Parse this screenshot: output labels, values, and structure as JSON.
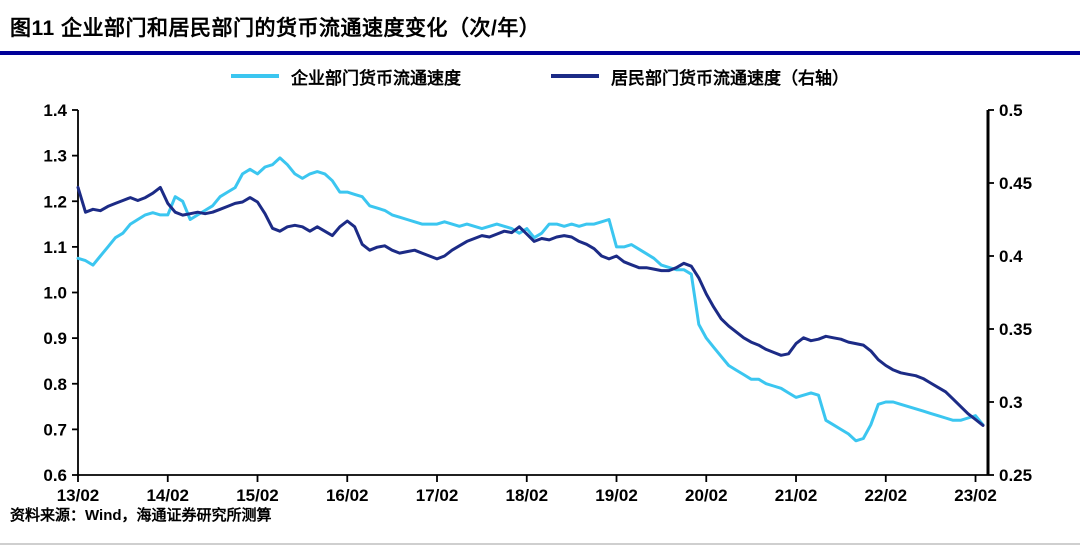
{
  "page": {
    "title": "图11 企业部门和居民部门的货币流通速度变化（次/年）",
    "source": "资料来源：Wind，海通证券研究所测算"
  },
  "colors": {
    "corporate_line": "#3bc6f0",
    "household_line": "#1c2b86",
    "title_rule": "#000099",
    "axis": "#000000"
  },
  "chart_data": {
    "type": "line",
    "title": "企业部门和居民部门的货币流通速度变化（次/年）",
    "x_unit": "month (YY/MM)",
    "legend_position": "top",
    "grid": false,
    "x_tick_labels": [
      "13/02",
      "14/02",
      "15/02",
      "16/02",
      "17/02",
      "18/02",
      "19/02",
      "20/02",
      "21/02",
      "22/02",
      "23/02"
    ],
    "x_tick_indices": [
      0,
      12,
      24,
      36,
      48,
      60,
      72,
      84,
      96,
      108,
      120
    ],
    "left_axis": {
      "min": 0.6,
      "max": 1.4,
      "ticks": [
        1.4,
        1.3,
        1.2,
        1.1,
        1.0,
        0.9,
        0.8,
        0.7,
        0.6
      ],
      "labels": [
        "1.4",
        "1.3",
        "1.2",
        "1.1",
        "1.0",
        "0.9",
        "0.8",
        "0.7",
        "0.6"
      ]
    },
    "right_axis": {
      "min": 0.25,
      "max": 0.5,
      "ticks": [
        0.5,
        0.45,
        0.4,
        0.35,
        0.3,
        0.25
      ],
      "labels": [
        "0.5",
        "0.45",
        "0.4",
        "0.35",
        "0.3",
        "0.25"
      ]
    },
    "series": [
      {
        "name": "企业部门货币流通速度",
        "axis": "left",
        "color": "#3bc6f0",
        "start": "2013-02",
        "values": [
          1.075,
          1.07,
          1.06,
          1.08,
          1.1,
          1.12,
          1.13,
          1.15,
          1.16,
          1.17,
          1.175,
          1.17,
          1.17,
          1.21,
          1.2,
          1.16,
          1.17,
          1.18,
          1.19,
          1.21,
          1.22,
          1.23,
          1.26,
          1.27,
          1.26,
          1.275,
          1.28,
          1.295,
          1.28,
          1.26,
          1.25,
          1.26,
          1.265,
          1.26,
          1.245,
          1.22,
          1.22,
          1.215,
          1.21,
          1.19,
          1.185,
          1.18,
          1.17,
          1.165,
          1.16,
          1.155,
          1.15,
          1.15,
          1.15,
          1.155,
          1.15,
          1.145,
          1.15,
          1.145,
          1.14,
          1.145,
          1.15,
          1.145,
          1.14,
          1.13,
          1.14,
          1.12,
          1.13,
          1.15,
          1.15,
          1.145,
          1.15,
          1.145,
          1.15,
          1.15,
          1.155,
          1.16,
          1.1,
          1.1,
          1.105,
          1.095,
          1.085,
          1.075,
          1.06,
          1.055,
          1.05,
          1.05,
          1.04,
          0.93,
          0.9,
          0.88,
          0.86,
          0.84,
          0.83,
          0.82,
          0.81,
          0.81,
          0.8,
          0.795,
          0.79,
          0.78,
          0.77,
          0.775,
          0.78,
          0.775,
          0.72,
          0.71,
          0.7,
          0.69,
          0.675,
          0.68,
          0.71,
          0.755,
          0.76,
          0.76,
          0.755,
          0.75,
          0.745,
          0.74,
          0.735,
          0.73,
          0.725,
          0.72,
          0.72,
          0.725,
          0.73,
          0.71
        ]
      },
      {
        "name": "居民部门货币流通速度（右轴）",
        "axis": "right",
        "color": "#1c2b86",
        "start": "2013-02",
        "values": [
          0.447,
          0.43,
          0.432,
          0.431,
          0.434,
          0.436,
          0.438,
          0.44,
          0.438,
          0.44,
          0.443,
          0.447,
          0.436,
          0.43,
          0.428,
          0.429,
          0.43,
          0.429,
          0.43,
          0.432,
          0.434,
          0.436,
          0.437,
          0.44,
          0.437,
          0.429,
          0.419,
          0.417,
          0.42,
          0.421,
          0.42,
          0.417,
          0.42,
          0.417,
          0.414,
          0.42,
          0.424,
          0.42,
          0.408,
          0.404,
          0.406,
          0.407,
          0.404,
          0.402,
          0.403,
          0.404,
          0.402,
          0.4,
          0.398,
          0.4,
          0.404,
          0.407,
          0.41,
          0.412,
          0.414,
          0.413,
          0.415,
          0.417,
          0.416,
          0.42,
          0.415,
          0.41,
          0.412,
          0.411,
          0.413,
          0.414,
          0.413,
          0.41,
          0.408,
          0.405,
          0.4,
          0.398,
          0.4,
          0.396,
          0.394,
          0.392,
          0.392,
          0.391,
          0.39,
          0.39,
          0.392,
          0.395,
          0.393,
          0.385,
          0.374,
          0.365,
          0.357,
          0.352,
          0.348,
          0.344,
          0.341,
          0.339,
          0.336,
          0.334,
          0.332,
          0.333,
          0.34,
          0.344,
          0.342,
          0.343,
          0.345,
          0.344,
          0.343,
          0.341,
          0.34,
          0.339,
          0.335,
          0.329,
          0.325,
          0.322,
          0.32,
          0.319,
          0.318,
          0.316,
          0.313,
          0.31,
          0.307,
          0.302,
          0.297,
          0.292,
          0.288,
          0.284
        ]
      }
    ]
  }
}
